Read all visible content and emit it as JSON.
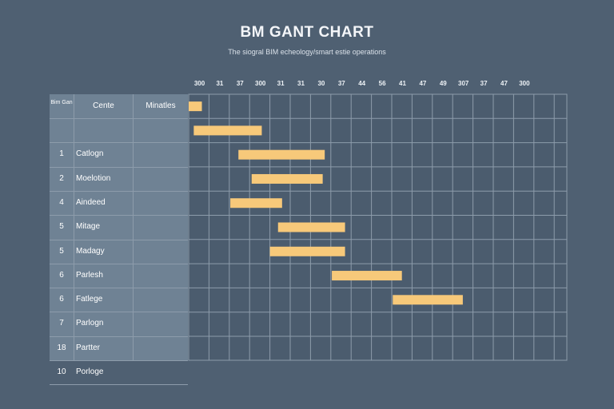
{
  "title": "BM GANT CHART",
  "subtitle": "The siogral BIM echeology/smart estie operations",
  "columns": {
    "index": "Bim Gan",
    "name": "Cente",
    "minutes": "Minatles"
  },
  "timeline_labels": [
    "300",
    "31",
    "37",
    "300",
    "31",
    "31",
    "30",
    "37",
    "44",
    "56",
    "41",
    "47",
    "49",
    "307",
    "37",
    "47",
    "300"
  ],
  "rows": [
    {
      "num": "",
      "name": ""
    },
    {
      "num": "1",
      "name": "Catlogn"
    },
    {
      "num": "2",
      "name": "Moelotion"
    },
    {
      "num": "4",
      "name": "Aindeed"
    },
    {
      "num": "5",
      "name": "Mitage"
    },
    {
      "num": "5",
      "name": "Madagy"
    },
    {
      "num": "6",
      "name": "Parlesh"
    },
    {
      "num": "6",
      "name": "Fatlege"
    },
    {
      "num": "7",
      "name": "Parlogn"
    },
    {
      "num": "18",
      "name": "Partter"
    },
    {
      "num": "10",
      "name": "Porloge"
    }
  ],
  "colors": {
    "background": "#4f6072",
    "bar": "#f7c97a",
    "grid": "#8d9cab",
    "left_table": "#6f8294"
  },
  "chart_data": {
    "type": "gantt",
    "title": "BM GANT CHART",
    "x_units": "timeline column index",
    "x_range": [
      0,
      18.5
    ],
    "tasks": [
      {
        "row": 0,
        "start": 0.0,
        "end": 0.65
      },
      {
        "row": 1,
        "start": 0.25,
        "end": 3.6
      },
      {
        "row": 2,
        "start": 2.45,
        "end": 6.7
      },
      {
        "row": 3,
        "start": 3.1,
        "end": 6.6
      },
      {
        "row": 4,
        "start": 2.05,
        "end": 4.6
      },
      {
        "row": 5,
        "start": 4.4,
        "end": 7.7
      },
      {
        "row": 6,
        "start": 4.0,
        "end": 7.7
      },
      {
        "row": 7,
        "start": 7.05,
        "end": 10.5
      },
      {
        "row": 8,
        "start": 10.05,
        "end": 13.5
      }
    ]
  }
}
